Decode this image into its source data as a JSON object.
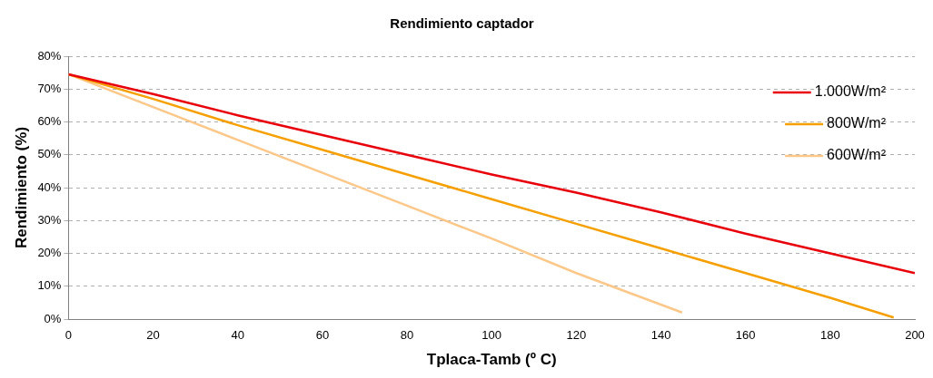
{
  "chart_data": {
    "type": "line",
    "title": "Rendimiento captador",
    "xlabel": "Tplaca-Tamb (º C)",
    "ylabel": "Rendimiento (%)",
    "xlim": [
      0,
      200
    ],
    "xticks": [
      0,
      20,
      40,
      60,
      80,
      100,
      120,
      140,
      160,
      180,
      200
    ],
    "ylim": [
      0,
      80
    ],
    "yticks": [
      {
        "value": 0,
        "label": "0%"
      },
      {
        "value": 10,
        "label": "10%"
      },
      {
        "value": 20,
        "label": "20%"
      },
      {
        "value": 30,
        "label": "30%"
      },
      {
        "value": 40,
        "label": "40%"
      },
      {
        "value": 50,
        "label": "50%"
      },
      {
        "value": 60,
        "label": "60%"
      },
      {
        "value": 70,
        "label": "70%"
      },
      {
        "value": 80,
        "label": "80%"
      }
    ],
    "grid": "y",
    "legend": "top right",
    "marker": "none",
    "line_style": "solid",
    "series": [
      {
        "name": "1.000W/m²",
        "color": "#e8000b",
        "x": [
          0,
          20,
          40,
          60,
          80,
          100,
          120,
          140,
          160,
          180,
          200
        ],
        "values": [
          74.5,
          68.5,
          62,
          56,
          50,
          44,
          38.5,
          32.5,
          26,
          20,
          14
        ]
      },
      {
        "name": "800W/m²",
        "color": "#f5a000",
        "x": [
          0,
          20,
          40,
          60,
          80,
          100,
          120,
          140,
          160,
          180,
          195
        ],
        "values": [
          74.5,
          67,
          59,
          51.5,
          44,
          36.5,
          29,
          21.5,
          14,
          6.5,
          0.5
        ]
      },
      {
        "name": "600W/m²",
        "color": "#fcc88a",
        "x": [
          0,
          20,
          40,
          60,
          80,
          100,
          120,
          145
        ],
        "values": [
          74.5,
          64.5,
          54.5,
          44.5,
          34.5,
          24.5,
          14,
          2
        ]
      }
    ]
  }
}
